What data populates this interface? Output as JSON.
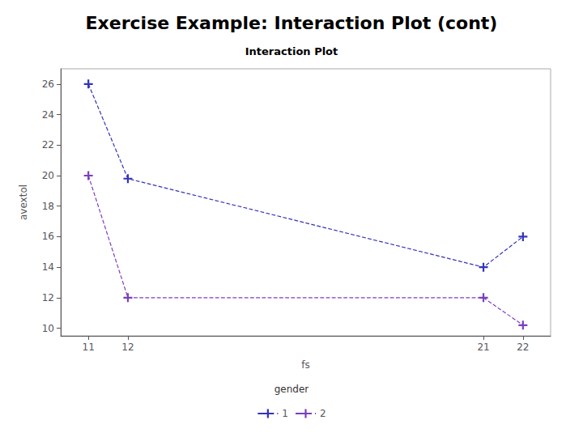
{
  "chart_data": {
    "type": "line",
    "title": "Exercise Example: Interaction Plot (cont)",
    "subtitle": "Interaction Plot",
    "x_label": "fs",
    "y_label": "avextol",
    "x": [
      11,
      12,
      21,
      22
    ],
    "series": [
      {
        "name": "1",
        "color": "#3333BB",
        "values": [
          26,
          19.8,
          14,
          16
        ]
      },
      {
        "name": "2",
        "color": "#7B3FBE",
        "values": [
          20,
          12,
          12,
          10.2
        ]
      }
    ],
    "xlim": [
      10.3,
      22.7
    ],
    "xticks": [
      11,
      12,
      21,
      22
    ],
    "ylim": [
      9.5,
      27
    ],
    "yticks": [
      10,
      12,
      14,
      16,
      18,
      20,
      22,
      24,
      26
    ],
    "grid": false,
    "legend": "bottom",
    "legend_title": "gender",
    "marker": "plus",
    "line_style": "dashed"
  }
}
